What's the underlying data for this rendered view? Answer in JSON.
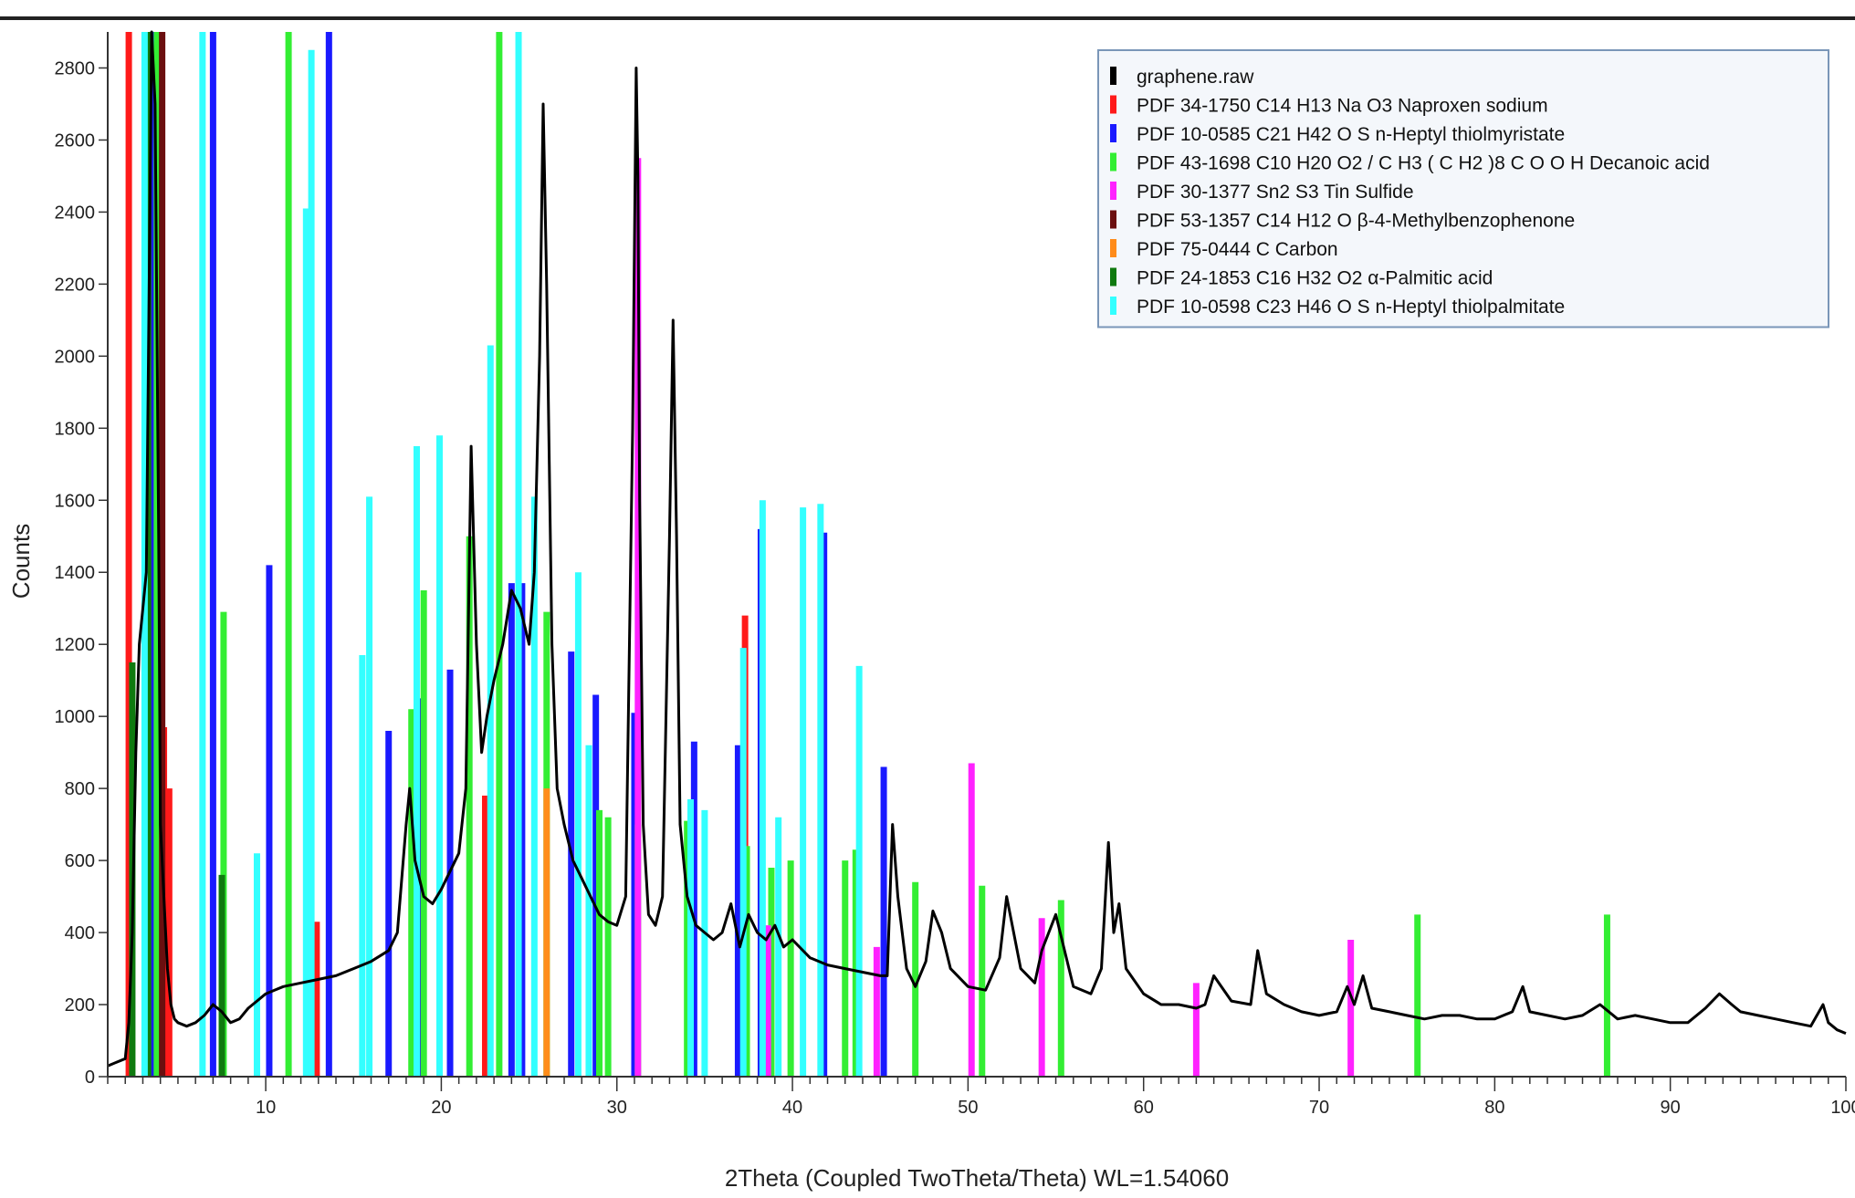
{
  "chart_data": {
    "type": "line",
    "xlabel": "2Theta (Coupled TwoTheta/Theta) WL=1.54060",
    "ylabel": "Counts",
    "xlim": [
      1,
      100
    ],
    "ylim": [
      0,
      2900
    ],
    "x_ticks": [
      10,
      20,
      30,
      40,
      50,
      60,
      70,
      80,
      90,
      100
    ],
    "y_ticks": [
      0,
      200,
      400,
      600,
      800,
      1000,
      1200,
      1400,
      1600,
      1800,
      2000,
      2200,
      2400,
      2600,
      2800
    ],
    "grid": false,
    "legend_position": "top-right",
    "legend": [
      {
        "label": "graphene.raw",
        "color": "#000000"
      },
      {
        "label": "PDF 34-1750 C14 H13 Na O3 Naproxen sodium",
        "color": "#ff1a1a"
      },
      {
        "label": "PDF 10-0585 C21 H42 O S n-Heptyl thiolmyristate",
        "color": "#1a1aff"
      },
      {
        "label": "PDF 43-1698 C10 H20 O2 / C H3 ( C H2 )8 C O O H Decanoic acid",
        "color": "#33ee33"
      },
      {
        "label": "PDF 30-1377 Sn2 S3 Tin Sulfide",
        "color": "#ff22ff"
      },
      {
        "label": "PDF 53-1357 C14 H12 O β-4-Methylbenzophenone",
        "color": "#6b0f0f"
      },
      {
        "label": "PDF 75-0444 C Carbon",
        "color": "#ff8c1a"
      },
      {
        "label": "PDF 24-1853 C16 H32 O2 α-Palmitic acid",
        "color": "#0f7a0f"
      },
      {
        "label": "PDF 10-0598 C23 H46 O S n-Heptyl thiolpalmitate",
        "color": "#33ffff"
      }
    ],
    "series": [
      {
        "name": "graphene.raw",
        "color": "#000000",
        "x": [
          1.0,
          1.5,
          2.0,
          2.2,
          2.4,
          2.6,
          2.8,
          3.0,
          3.2,
          3.4,
          3.5,
          3.7,
          3.9,
          4.0,
          4.2,
          4.4,
          4.6,
          4.8,
          5.0,
          5.5,
          6.0,
          6.5,
          7.0,
          7.5,
          8.0,
          8.5,
          9.0,
          9.5,
          10,
          10.5,
          11,
          12,
          13,
          14,
          15,
          16,
          17,
          17.5,
          18,
          18.2,
          18.5,
          19,
          19.5,
          20,
          21,
          21.4,
          21.7,
          22,
          22.3,
          22.6,
          23,
          23.5,
          24,
          24.5,
          25,
          25.3,
          25.6,
          25.8,
          26.0,
          26.3,
          26.6,
          27,
          27.5,
          28,
          28.5,
          29,
          29.5,
          30,
          30.5,
          30.9,
          31.1,
          31.2,
          31.3,
          31.5,
          31.8,
          32.2,
          32.6,
          33.0,
          33.2,
          33.4,
          33.6,
          34.0,
          34.5,
          35,
          35.5,
          36,
          36.5,
          37,
          37.5,
          38,
          38.5,
          39,
          39.5,
          40,
          41,
          42,
          43,
          44,
          45,
          45.4,
          45.7,
          46.0,
          46.5,
          47,
          47.6,
          48,
          48.5,
          49,
          50,
          51,
          51.8,
          52.2,
          53,
          53.8,
          54.2,
          55,
          56,
          57,
          57.6,
          58,
          58.3,
          58.6,
          59,
          60,
          61,
          62,
          63,
          63.5,
          64,
          65,
          66.1,
          66.5,
          67,
          68,
          69,
          70,
          71,
          71.6,
          72,
          72.5,
          73,
          74,
          75,
          76,
          77,
          78,
          79,
          80,
          81,
          81.6,
          82,
          83,
          84,
          85,
          86,
          87,
          88,
          89,
          90,
          91,
          92,
          92.8,
          93.5,
          94,
          95,
          96,
          97,
          98,
          98.7,
          99,
          99.5,
          100
        ],
        "y": [
          30,
          40,
          50,
          150,
          400,
          900,
          1200,
          1300,
          1400,
          2400,
          2900,
          2700,
          1500,
          700,
          500,
          300,
          200,
          160,
          150,
          140,
          150,
          170,
          200,
          180,
          150,
          160,
          190,
          210,
          230,
          240,
          250,
          260,
          270,
          280,
          300,
          320,
          350,
          400,
          700,
          800,
          600,
          500,
          480,
          520,
          620,
          800,
          1750,
          1200,
          900,
          1000,
          1100,
          1200,
          1350,
          1300,
          1200,
          1400,
          2000,
          2700,
          2200,
          1200,
          800,
          700,
          600,
          550,
          500,
          450,
          430,
          420,
          500,
          1800,
          2800,
          2500,
          1600,
          700,
          450,
          420,
          500,
          1500,
          2100,
          1500,
          700,
          500,
          420,
          400,
          380,
          400,
          480,
          360,
          450,
          400,
          380,
          420,
          360,
          380,
          330,
          310,
          300,
          290,
          280,
          280,
          700,
          500,
          300,
          250,
          320,
          460,
          400,
          300,
          250,
          240,
          330,
          500,
          300,
          260,
          350,
          450,
          250,
          230,
          300,
          650,
          400,
          480,
          300,
          230,
          200,
          200,
          190,
          200,
          280,
          210,
          200,
          350,
          230,
          200,
          180,
          170,
          180,
          250,
          200,
          280,
          190,
          180,
          170,
          160,
          170,
          170,
          160,
          160,
          180,
          250,
          180,
          170,
          160,
          170,
          200,
          160,
          170,
          160,
          150,
          150,
          190,
          230,
          200,
          180,
          170,
          160,
          150,
          140,
          200,
          150,
          130,
          120
        ],
        "style": "line"
      }
    ],
    "reference_patterns": [
      {
        "name": "PDF 34-1750 C14 H13 Na O3 Naproxen sodium",
        "color": "#ff1a1a",
        "peaks": [
          [
            2.2,
            2900
          ],
          [
            4.2,
            970
          ],
          [
            4.5,
            800
          ],
          [
            12.9,
            430
          ],
          [
            22.5,
            780
          ],
          [
            37.3,
            1280
          ]
        ]
      },
      {
        "name": "PDF 10-0585 C21 H42 O S n-Heptyl thiolmyristate",
        "color": "#1a1aff",
        "peaks": [
          [
            3.5,
            2900
          ],
          [
            7.0,
            2900
          ],
          [
            10.2,
            1420
          ],
          [
            13.6,
            2900
          ],
          [
            17.0,
            960
          ],
          [
            18.7,
            1050
          ],
          [
            20.5,
            1130
          ],
          [
            24.0,
            1370
          ],
          [
            24.6,
            1370
          ],
          [
            27.4,
            1180
          ],
          [
            28.8,
            1060
          ],
          [
            31.0,
            1010
          ],
          [
            34.4,
            930
          ],
          [
            36.9,
            920
          ],
          [
            38.2,
            1520
          ],
          [
            41.8,
            1510
          ],
          [
            45.2,
            860
          ]
        ]
      },
      {
        "name": "PDF 43-1698 C10 H20 O2 / C H3 ( C H2 )8 C O O H Decanoic acid",
        "color": "#33ee33",
        "peaks": [
          [
            3.8,
            2900
          ],
          [
            7.6,
            1290
          ],
          [
            11.3,
            2900
          ],
          [
            18.3,
            1020
          ],
          [
            19.0,
            1350
          ],
          [
            21.6,
            1500
          ],
          [
            23.3,
            2900
          ],
          [
            26.0,
            1290
          ],
          [
            29.0,
            740
          ],
          [
            29.5,
            720
          ],
          [
            31.2,
            700
          ],
          [
            34.0,
            710
          ],
          [
            37.4,
            640
          ],
          [
            38.8,
            580
          ],
          [
            39.9,
            600
          ],
          [
            43.0,
            600
          ],
          [
            43.6,
            630
          ],
          [
            47.0,
            540
          ],
          [
            50.8,
            530
          ],
          [
            55.3,
            490
          ],
          [
            75.6,
            450
          ],
          [
            86.4,
            450
          ]
        ]
      },
      {
        "name": "PDF 30-1377 Sn2 S3 Tin Sulfide",
        "color": "#ff22ff",
        "peaks": [
          [
            31.2,
            2550
          ],
          [
            38.6,
            420
          ],
          [
            44.8,
            360
          ],
          [
            50.2,
            870
          ],
          [
            54.2,
            440
          ],
          [
            63.0,
            260
          ],
          [
            71.8,
            380
          ]
        ]
      },
      {
        "name": "PDF 53-1357 C14 H12 O β-4-Methylbenzophenone",
        "color": "#6b0f0f",
        "peaks": [
          [
            4.1,
            2900
          ]
        ]
      },
      {
        "name": "PDF 75-0444 C Carbon",
        "color": "#ff8c1a",
        "peaks": [
          [
            26.0,
            800
          ]
        ]
      },
      {
        "name": "PDF 24-1853 C16 H32 O2 α-Palmitic acid",
        "color": "#0f7a0f",
        "peaks": [
          [
            2.4,
            1150
          ],
          [
            3.3,
            2900
          ],
          [
            7.5,
            560
          ]
        ]
      },
      {
        "name": "PDF 10-0598 C23 H46 O S n-Heptyl thiolpalmitate",
        "color": "#33ffff",
        "peaks": [
          [
            3.1,
            2900
          ],
          [
            6.4,
            2900
          ],
          [
            9.5,
            620
          ],
          [
            12.3,
            2410
          ],
          [
            12.6,
            2850
          ],
          [
            15.5,
            1170
          ],
          [
            15.9,
            1610
          ],
          [
            18.6,
            1750
          ],
          [
            19.9,
            1780
          ],
          [
            22.8,
            2030
          ],
          [
            24.4,
            2900
          ],
          [
            25.3,
            1610
          ],
          [
            27.8,
            1400
          ],
          [
            28.4,
            920
          ],
          [
            34.2,
            770
          ],
          [
            35.0,
            740
          ],
          [
            37.2,
            1190
          ],
          [
            38.3,
            1600
          ],
          [
            39.2,
            720
          ],
          [
            40.6,
            1580
          ],
          [
            41.6,
            1590
          ],
          [
            43.8,
            1140
          ]
        ]
      }
    ]
  }
}
